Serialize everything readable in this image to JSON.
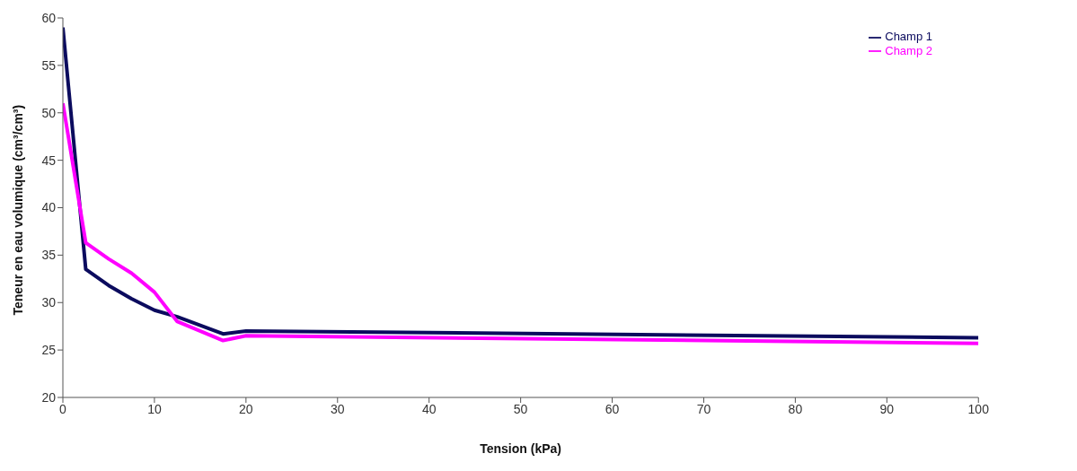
{
  "chart_data": {
    "type": "line",
    "xlabel": "Tension (kPa)",
    "ylabel": "Teneur en eau volumique (cm³/cm³)",
    "xlim": [
      0,
      100
    ],
    "xticks": [
      0,
      10,
      20,
      30,
      40,
      50,
      60,
      70,
      80,
      90,
      100
    ],
    "ylim": [
      20,
      60
    ],
    "yticks": [
      20,
      25,
      30,
      35,
      40,
      45,
      50,
      55,
      60
    ],
    "grid": false,
    "legend": "top right",
    "marker": "none",
    "line_style": "solid",
    "series": [
      {
        "name": "Champ 1",
        "color": "#0b0b5e",
        "x": [
          0,
          2.5,
          5,
          7.5,
          10,
          12.5,
          17.5,
          20,
          100
        ],
        "values": [
          59,
          33.5,
          31.8,
          30.4,
          29.2,
          28.5,
          26.7,
          27,
          26.3
        ]
      },
      {
        "name": "Champ 2",
        "color": "#ff00ff",
        "x": [
          0,
          2.5,
          5,
          7.5,
          10,
          12.5,
          17.5,
          20,
          100
        ],
        "values": [
          51,
          36.3,
          34.6,
          33.1,
          31.1,
          28,
          26,
          26.5,
          25.7
        ]
      }
    ]
  }
}
